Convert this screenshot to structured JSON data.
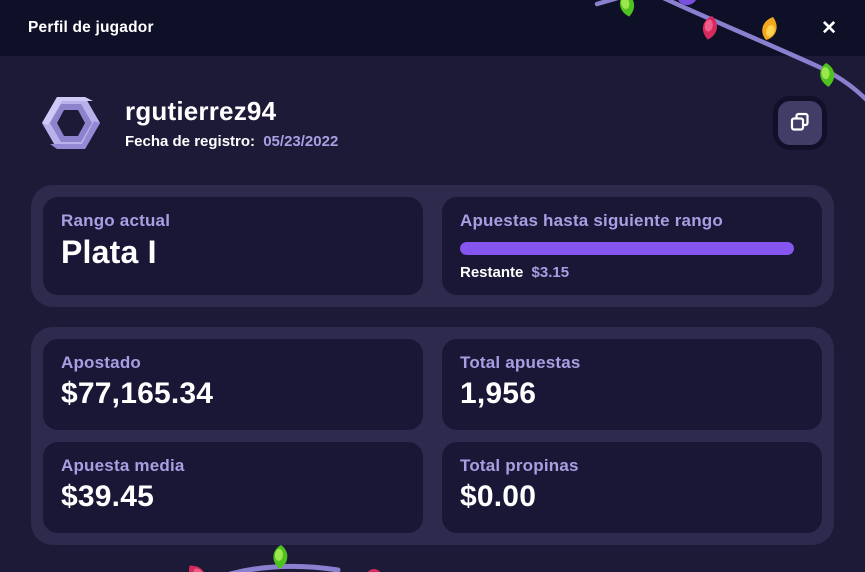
{
  "window": {
    "title": "Perfil de jugador",
    "close_glyph": "✕"
  },
  "player": {
    "username": "rgutierrez94",
    "registration_label": "Fecha de registro:",
    "registration_date": "05/23/2022"
  },
  "rank_section": {
    "current_rank_label": "Rango actual",
    "current_rank": "Plata I",
    "next_rank_label": "Apuestas hasta siguiente rango",
    "progress_percent": 100,
    "remaining_label": "Restante",
    "remaining_amount": "$3.15"
  },
  "stats": {
    "items": [
      {
        "label": "Apostado",
        "value": "$77,165.34"
      },
      {
        "label": "Total apuestas",
        "value": "1,956"
      },
      {
        "label": "Apuesta media",
        "value": "$39.45"
      },
      {
        "label": "Total propinas",
        "value": "$0.00"
      }
    ]
  },
  "colors": {
    "header_bg": "#0e1027",
    "modal_bg": "#1d1a38",
    "outer_card": "#2e2a4e",
    "inner_card": "#191735",
    "label_purple": "#a89ee2",
    "progress_purple": "#8655f0",
    "string_purple": "#8b80cf",
    "bulb_green": "#4fc220",
    "bulb_red": "#d62a5e",
    "bulb_orange": "#f2a71f",
    "bulb_purple": "#7a4fe0",
    "avatar_lavender": "#b9b1ec"
  },
  "decorations": {
    "top_lights": [
      "green",
      "purple",
      "red",
      "orange",
      "green"
    ],
    "bottom_lights": [
      "red",
      "green",
      "red"
    ]
  }
}
